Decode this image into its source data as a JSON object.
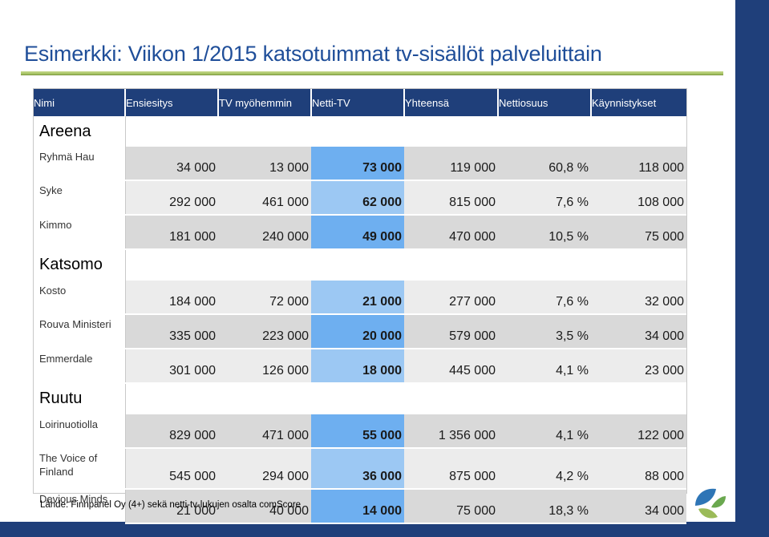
{
  "title": "Esimerkki: Viikon 1/2015 katsotuimmat tv-sisällöt palveluittain",
  "columns": [
    "Nimi",
    "Ensiesitys",
    "TV myöhemmin",
    "Netti-TV",
    "Yhteensä",
    "Nettiosuus",
    "Käynnistykset"
  ],
  "sections": [
    {
      "name": "Areena",
      "rows": [
        {
          "name": "Ryhmä Hau",
          "values": [
            "34 000",
            "13 000",
            "73 000",
            "119 000",
            "60,8 %",
            "118 000"
          ]
        },
        {
          "name": "Syke",
          "values": [
            "292 000",
            "461 000",
            "62 000",
            "815 000",
            "7,6 %",
            "108 000"
          ]
        },
        {
          "name": "Kimmo",
          "values": [
            "181 000",
            "240 000",
            "49 000",
            "470 000",
            "10,5 %",
            "75 000"
          ]
        }
      ]
    },
    {
      "name": "Katsomo",
      "rows": [
        {
          "name": "Kosto",
          "values": [
            "184 000",
            "72 000",
            "21 000",
            "277 000",
            "7,6 %",
            "32 000"
          ]
        },
        {
          "name": "Rouva Ministeri",
          "values": [
            "335 000",
            "223 000",
            "20 000",
            "579 000",
            "3,5 %",
            "34 000"
          ]
        },
        {
          "name": "Emmerdale",
          "values": [
            "301 000",
            "126 000",
            "18 000",
            "445 000",
            "4,1 %",
            "23 000"
          ]
        }
      ]
    },
    {
      "name": "Ruutu",
      "rows": [
        {
          "name": "Loirinuotiolla",
          "values": [
            "829 000",
            "471 000",
            "55 000",
            "1 356 000",
            "4,1 %",
            "122 000"
          ]
        },
        {
          "name": "The Voice of Finland",
          "values": [
            "545 000",
            "294 000",
            "36 000",
            "875 000",
            "4,2 %",
            "88 000"
          ]
        },
        {
          "name": "Devious Minds",
          "values": [
            "21 000",
            "40 000",
            "14 000",
            "75 000",
            "18,3 %",
            "34 000"
          ]
        }
      ]
    }
  ],
  "source": "Lähde: Finnpanel Oy (4+) sekä netti-tv-lukujen osalta comScore",
  "colors": {
    "header_bg": "#1f3f7a",
    "highlight": "#6eaff0",
    "highlight_light": "#9cc8f3",
    "row_gray": "#d9d9d9",
    "row_light": "#ececec",
    "title": "#1f4e99",
    "accent_green": "#9bbb59"
  },
  "logo_icon": "leaf-logo-icon"
}
